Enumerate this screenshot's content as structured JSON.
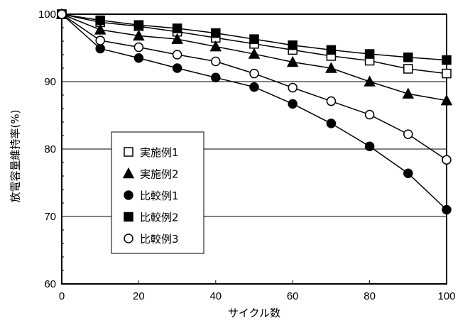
{
  "chart_data": {
    "type": "line",
    "title": "",
    "xlabel": "サイクル数",
    "ylabel": "放電容量維持率(%)",
    "xlim": [
      0,
      100
    ],
    "ylim": [
      60,
      100
    ],
    "x_ticks": [
      0,
      20,
      40,
      60,
      80,
      100
    ],
    "y_ticks": [
      60,
      70,
      80,
      90,
      100
    ],
    "grid": {
      "horizontal": [
        70,
        80,
        90
      ],
      "vertical": false
    },
    "legend_position": "inside-left-center",
    "x": [
      0,
      10,
      20,
      30,
      40,
      50,
      60,
      70,
      80,
      90,
      100
    ],
    "series": [
      {
        "name": "実施例1",
        "marker": "square-open",
        "values": [
          100,
          98.8,
          98.2,
          97.4,
          96.5,
          95.6,
          94.7,
          93.8,
          93.1,
          91.9,
          91.2
        ]
      },
      {
        "name": "実施例2",
        "marker": "triangle-filled",
        "values": [
          100,
          97.7,
          96.8,
          96.3,
          95.2,
          94.1,
          92.9,
          92.0,
          90.0,
          88.2,
          87.2
        ]
      },
      {
        "name": "比較例1",
        "marker": "circle-filled",
        "values": [
          100,
          94.9,
          93.5,
          92.0,
          90.6,
          89.2,
          86.7,
          83.8,
          80.4,
          76.4,
          71.0
        ]
      },
      {
        "name": "比較例2",
        "marker": "square-filled",
        "values": [
          100,
          99.1,
          98.4,
          97.9,
          97.2,
          96.3,
          95.4,
          94.7,
          94.1,
          93.6,
          93.2
        ]
      },
      {
        "name": "比較例3",
        "marker": "circle-open",
        "values": [
          100,
          96.1,
          95.1,
          94.0,
          93.0,
          91.2,
          89.1,
          87.1,
          85.1,
          82.2,
          78.4
        ]
      }
    ]
  },
  "legend": {
    "items": [
      {
        "label": "実施例1",
        "marker": "square-open"
      },
      {
        "label": "実施例2",
        "marker": "triangle-filled"
      },
      {
        "label": "比較例1",
        "marker": "circle-filled"
      },
      {
        "label": "比較例2",
        "marker": "square-filled"
      },
      {
        "label": "比較例3",
        "marker": "circle-open"
      }
    ]
  },
  "colors": {
    "line": "#000000",
    "background": "#ffffff"
  }
}
